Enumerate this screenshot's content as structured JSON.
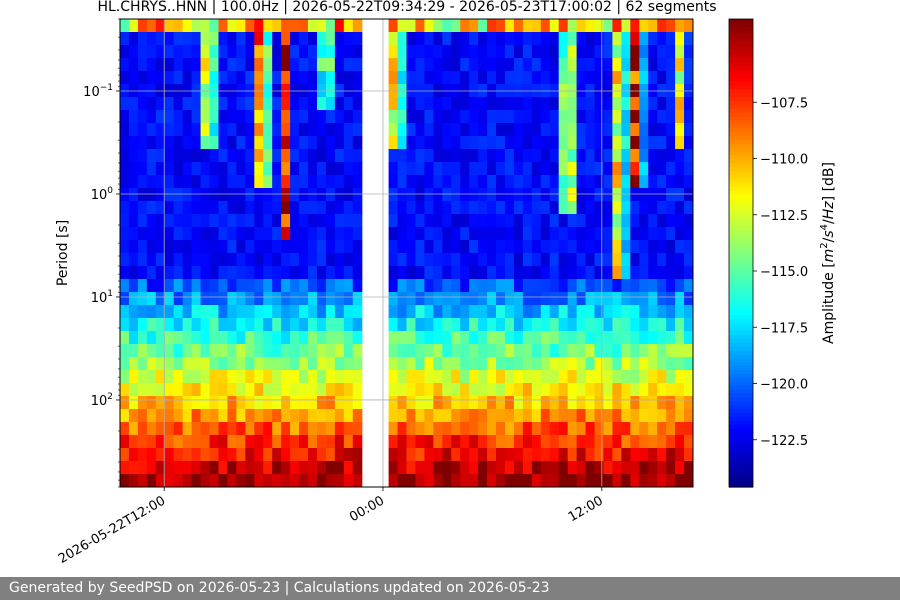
{
  "chart_data": {
    "type": "heatmap",
    "title": "HL.CHRYS..HNN | 100.0Hz | 2026-05-22T09:34:29 - 2026-05-23T17:00:02 | 62 segments",
    "ylabel": "Period [s]",
    "colorbar_label_parts": [
      "Amplitude [",
      "m",
      "2",
      "/",
      "s",
      "4",
      "/",
      "Hz",
      "] [dB]"
    ],
    "y_scale": "log",
    "y_inverted": true,
    "ylim": [
      0.02,
      700
    ],
    "y_ticks": [
      {
        "value": 0.1,
        "base": "10",
        "exp": "−1"
      },
      {
        "value": 1,
        "base": "10",
        "exp": "0"
      },
      {
        "value": 10,
        "base": "10",
        "exp": "1"
      },
      {
        "value": 100,
        "base": "10",
        "exp": "2"
      }
    ],
    "xlim": [
      "2026-05-22T09:34:29",
      "2026-05-23T17:00:02"
    ],
    "x_ticks": [
      {
        "value": "2026-05-22T12:00:00",
        "label": "2026-05-22T12:00"
      },
      {
        "value": "2026-05-23T00:00:00",
        "label": "00:00"
      },
      {
        "value": "2026-05-23T12:00:00",
        "label": "12:00"
      }
    ],
    "gap": [
      "2026-05-22T22:55:00",
      "2026-05-23T00:05:00"
    ],
    "segment_count": 62,
    "colorscale": "jet",
    "clim": [
      -124.6,
      -103.8
    ],
    "colorbar_ticks": [
      {
        "value": -107.5,
        "label": "−107.5"
      },
      {
        "value": -110.0,
        "label": "−110.0"
      },
      {
        "value": -112.5,
        "label": "−112.5"
      },
      {
        "value": -115.0,
        "label": "−115.0"
      },
      {
        "value": -117.5,
        "label": "−117.5"
      },
      {
        "value": -120.0,
        "label": "−120.0"
      },
      {
        "value": -122.5,
        "label": "−122.5"
      }
    ],
    "grid": true
  },
  "footer": {
    "text": "Generated by SeedPSD on 2026-05-23 | Calculations updated on 2026-05-23"
  }
}
